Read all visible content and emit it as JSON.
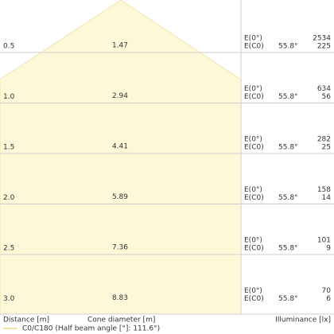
{
  "rows": [
    {
      "distance": "0.5",
      "diameter": "1.47",
      "e0_label": "E(0°)",
      "ec0_label": "E(C0)",
      "angle": "55.8°",
      "e0": "2534",
      "ec0": "225"
    },
    {
      "distance": "1.0",
      "diameter": "2.94",
      "e0_label": "E(0°)",
      "ec0_label": "E(C0)",
      "angle": "55.8°",
      "e0": "634",
      "ec0": "56"
    },
    {
      "distance": "1.5",
      "diameter": "4.41",
      "e0_label": "E(0°)",
      "ec0_label": "E(C0)",
      "angle": "55.8°",
      "e0": "282",
      "ec0": "25"
    },
    {
      "distance": "2.0",
      "diameter": "5.89",
      "e0_label": "E(0°)",
      "ec0_label": "E(C0)",
      "angle": "55.8°",
      "e0": "158",
      "ec0": "14"
    },
    {
      "distance": "2.5",
      "diameter": "7.36",
      "e0_label": "E(0°)",
      "ec0_label": "E(C0)",
      "angle": "55.8°",
      "e0": "101",
      "ec0": "9"
    },
    {
      "distance": "3.0",
      "diameter": "8.83",
      "e0_label": "E(0°)",
      "ec0_label": "E(C0)",
      "angle": "55.8°",
      "e0": "70",
      "ec0": "6"
    }
  ],
  "footer": {
    "distance_label": "Distance [m]",
    "diameter_label": "Cone diameter [m]",
    "illuminance_label": "Illuminance [lx]",
    "legend": "C0/C180 (Half beam angle [°]: 111.6°)"
  }
}
